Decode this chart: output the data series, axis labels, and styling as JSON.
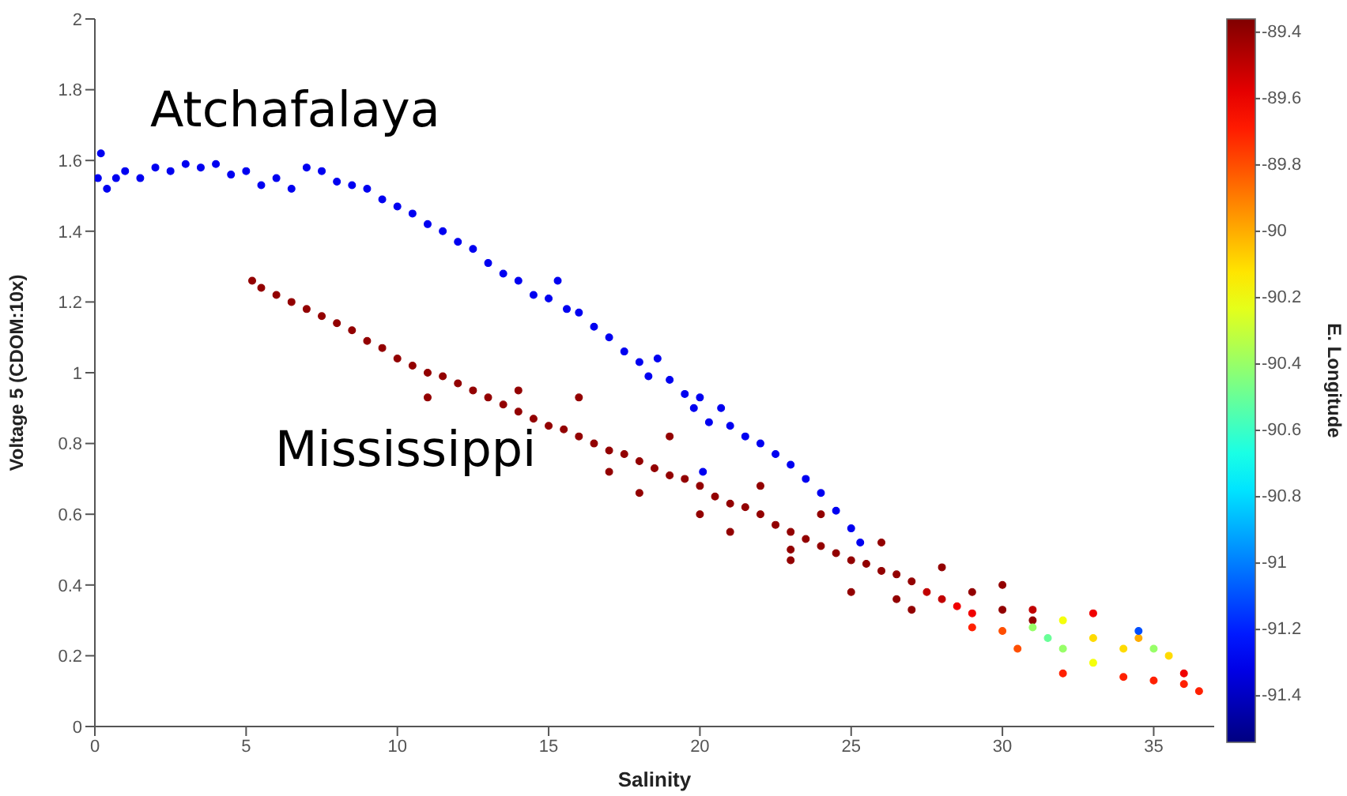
{
  "chart_data": {
    "type": "scatter",
    "xlabel": "Salinity",
    "ylabel": "Voltage 5 (CDOM:10x)",
    "clabel": "E. Longitude",
    "xlim": [
      0,
      37
    ],
    "xticks": [
      0,
      5,
      10,
      15,
      20,
      25,
      30,
      35
    ],
    "ylim": [
      0,
      2
    ],
    "yticks": [
      0,
      0.2,
      0.4,
      0.6,
      0.8,
      1,
      1.2,
      1.4,
      1.6,
      1.8,
      2
    ],
    "clim": [
      -91.54,
      -89.36
    ],
    "cticks": [
      -89.4,
      -89.6,
      -89.8,
      -90,
      -90.2,
      -90.4,
      -90.6,
      -90.8,
      -91,
      -91.2,
      -91.4
    ],
    "marker": "circle",
    "annotations": [
      "Atchafalaya",
      "Mississippi"
    ],
    "series": [
      {
        "x": [
          0.1,
          0.2,
          0.4,
          0.7,
          1,
          1.5,
          2,
          2.5,
          3,
          3.5,
          4,
          4.5,
          5,
          5.5,
          6,
          6.5,
          7,
          7.5,
          8,
          8.5,
          9,
          9.5,
          10,
          10.5,
          11,
          11.5,
          12,
          12.5,
          13,
          13.5,
          14,
          14.5,
          15,
          15.3,
          15.6,
          16,
          16.5,
          17,
          17.5,
          18,
          18.3,
          18.6,
          19,
          19.5,
          19.8,
          20,
          20.1,
          20.3,
          20.7,
          21,
          21.5,
          22,
          22.5,
          23,
          23.5,
          24,
          24.5,
          25,
          25.3
        ],
        "values": [
          1.55,
          1.62,
          1.52,
          1.55,
          1.57,
          1.55,
          1.58,
          1.57,
          1.59,
          1.58,
          1.59,
          1.56,
          1.57,
          1.53,
          1.55,
          1.52,
          1.58,
          1.57,
          1.54,
          1.53,
          1.52,
          1.49,
          1.47,
          1.45,
          1.42,
          1.4,
          1.37,
          1.35,
          1.31,
          1.28,
          1.26,
          1.22,
          1.21,
          1.26,
          1.18,
          1.17,
          1.13,
          1.1,
          1.06,
          1.03,
          0.99,
          1.04,
          0.98,
          0.94,
          0.9,
          0.93,
          0.72,
          0.86,
          0.9,
          0.85,
          0.82,
          0.8,
          0.77,
          0.74,
          0.7,
          0.66,
          0.61,
          0.56,
          0.52
        ],
        "cvalues": [
          -91.3,
          -91.3,
          -91.3,
          -91.3,
          -91.3,
          -91.3,
          -91.3,
          -91.3,
          -91.3,
          -91.3,
          -91.3,
          -91.3,
          -91.3,
          -91.3,
          -91.3,
          -91.3,
          -91.3,
          -91.3,
          -91.3,
          -91.3,
          -91.3,
          -91.3,
          -91.3,
          -91.3,
          -91.3,
          -91.3,
          -91.3,
          -91.3,
          -91.3,
          -91.3,
          -91.3,
          -91.3,
          -91.3,
          -91.3,
          -91.3,
          -91.3,
          -91.3,
          -91.3,
          -91.3,
          -91.3,
          -91.3,
          -91.3,
          -91.3,
          -91.3,
          -91.3,
          -91.3,
          -91.3,
          -91.3,
          -91.3,
          -91.3,
          -91.3,
          -91.3,
          -91.3,
          -91.3,
          -91.3,
          -91.3,
          -91.3,
          -91.3,
          -91.3
        ]
      },
      {
        "x": [
          5.2,
          5.5,
          6,
          6.5,
          7,
          7.5,
          8,
          8.5,
          9,
          9.5,
          10,
          10.5,
          11,
          11.5,
          12,
          12.5,
          13,
          13.5,
          14,
          14.5,
          15,
          15.5,
          16,
          16.5,
          17,
          17.5,
          18,
          18.5,
          19,
          19.5,
          20,
          20.5,
          21,
          21.5,
          22,
          22.5,
          23,
          23.5,
          24,
          24.5,
          25,
          25.5,
          26,
          26.5,
          27,
          27.5,
          28,
          28.5,
          29,
          11,
          14,
          16,
          17,
          18,
          19,
          20,
          21,
          22,
          23,
          24,
          25,
          26,
          27,
          28,
          29,
          30,
          31,
          23,
          26.5,
          29,
          30,
          30.5,
          31,
          31.5,
          32,
          32,
          33,
          33,
          34,
          34.5,
          35,
          35.5,
          34.5,
          31,
          33,
          32,
          34,
          35,
          36,
          36.5,
          36,
          30
        ],
        "values": [
          1.26,
          1.24,
          1.22,
          1.2,
          1.18,
          1.16,
          1.14,
          1.12,
          1.09,
          1.07,
          1.04,
          1.02,
          1,
          0.99,
          0.97,
          0.95,
          0.93,
          0.91,
          0.89,
          0.87,
          0.85,
          0.84,
          0.82,
          0.8,
          0.78,
          0.77,
          0.75,
          0.73,
          0.71,
          0.7,
          0.68,
          0.65,
          0.63,
          0.62,
          0.6,
          0.57,
          0.55,
          0.53,
          0.51,
          0.49,
          0.47,
          0.46,
          0.44,
          0.43,
          0.41,
          0.38,
          0.36,
          0.34,
          0.32,
          0.93,
          0.95,
          0.93,
          0.72,
          0.66,
          0.82,
          0.6,
          0.55,
          0.68,
          0.47,
          0.6,
          0.38,
          0.52,
          0.33,
          0.45,
          0.38,
          0.4,
          0.3,
          0.5,
          0.36,
          0.28,
          0.27,
          0.22,
          0.28,
          0.25,
          0.3,
          0.22,
          0.25,
          0.18,
          0.22,
          0.25,
          0.22,
          0.2,
          0.27,
          0.33,
          0.32,
          0.15,
          0.14,
          0.13,
          0.12,
          0.1,
          0.15,
          0.33
        ],
        "cvalues": [
          -89.4,
          -89.4,
          -89.4,
          -89.4,
          -89.4,
          -89.4,
          -89.4,
          -89.4,
          -89.4,
          -89.4,
          -89.4,
          -89.4,
          -89.4,
          -89.4,
          -89.4,
          -89.4,
          -89.4,
          -89.4,
          -89.4,
          -89.4,
          -89.4,
          -89.4,
          -89.4,
          -89.4,
          -89.4,
          -89.4,
          -89.4,
          -89.4,
          -89.4,
          -89.4,
          -89.4,
          -89.4,
          -89.4,
          -89.4,
          -89.4,
          -89.4,
          -89.4,
          -89.4,
          -89.4,
          -89.4,
          -89.4,
          -89.4,
          -89.4,
          -89.4,
          -89.4,
          -89.5,
          -89.5,
          -89.6,
          -89.6,
          -89.4,
          -89.4,
          -89.4,
          -89.4,
          -89.4,
          -89.4,
          -89.4,
          -89.4,
          -89.4,
          -89.4,
          -89.4,
          -89.4,
          -89.4,
          -89.4,
          -89.4,
          -89.4,
          -89.4,
          -89.4,
          -89.4,
          -89.4,
          -89.7,
          -89.8,
          -89.8,
          -90.4,
          -90.5,
          -90.2,
          -90.4,
          -90.1,
          -90.2,
          -90.1,
          -90,
          -90.4,
          -90.1,
          -91.1,
          -89.5,
          -89.6,
          -89.7,
          -89.7,
          -89.7,
          -89.7,
          -89.7,
          -89.6,
          -89.4
        ],
        "colors": [
          "#920000",
          "#920000",
          "#920000",
          "#920000",
          "#920000",
          "#920000",
          "#920000",
          "#920000",
          "#920000",
          "#920000",
          "#920000",
          "#920000",
          "#920000",
          "#920000",
          "#920000",
          "#920000",
          "#920000",
          "#920000",
          "#920000",
          "#920000",
          "#920000",
          "#920000",
          "#920000",
          "#920000",
          "#920000",
          "#920000",
          "#920000",
          "#920000",
          "#920000",
          "#920000",
          "#920000",
          "#920000",
          "#920000",
          "#920000",
          "#920000",
          "#920000",
          "#920000",
          "#920000",
          "#920000",
          "#920000",
          "#920000",
          "#920000",
          "#920000",
          "#920000",
          "#920000",
          "#c10000",
          "#c10000",
          "#f00000",
          "#f00000",
          "#920000",
          "#920000",
          "#920000",
          "#920000",
          "#920000",
          "#920000",
          "#920000",
          "#920000",
          "#920000",
          "#920000",
          "#920000",
          "#920000",
          "#920000",
          "#920000",
          "#920000",
          "#920000",
          "#920000",
          "#920000",
          "#920000",
          "#920000",
          "#ff2000",
          "#ff4e00",
          "#ff4e00",
          "#97ff68",
          "#68ff97",
          "#f5ff0a",
          "#97ff68",
          "#ffdb00",
          "#f5ff0a",
          "#ffdb00",
          "#ffac00",
          "#97ff68",
          "#ffdb00",
          "#004eff",
          "#c10000",
          "#f00000",
          "#ff2000",
          "#ff2000",
          "#ff2000",
          "#ff2000",
          "#ff2000",
          "#f00000",
          "#920000"
        ]
      }
    ]
  }
}
